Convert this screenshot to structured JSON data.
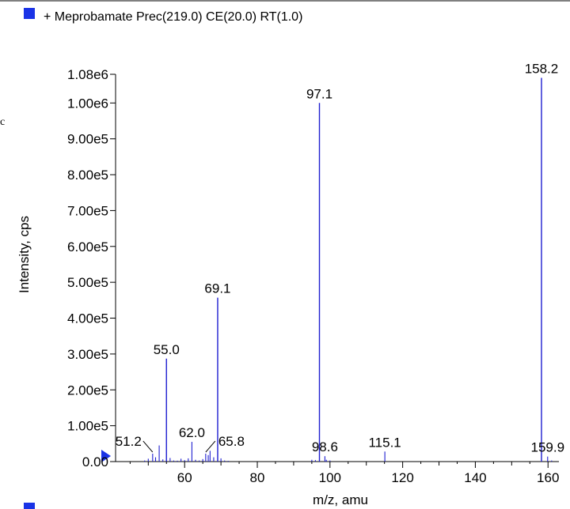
{
  "chart_data": {
    "type": "bar",
    "title": "+ Meprobamate Prec(219.0) CE(20.0) RT(1.0)",
    "xlabel": "m/z, amu",
    "ylabel": "Intensity, cps",
    "xlim": [
      41,
      163
    ],
    "ylim": [
      0,
      1080000
    ],
    "x_ticks": [
      60,
      80,
      100,
      120,
      140,
      160
    ],
    "y_ticks": [
      {
        "value": 0,
        "label": "0.00"
      },
      {
        "value": 100000,
        "label": "1.00e5"
      },
      {
        "value": 200000,
        "label": "2.00e5"
      },
      {
        "value": 300000,
        "label": "3.00e5"
      },
      {
        "value": 400000,
        "label": "4.00e5"
      },
      {
        "value": 500000,
        "label": "5.00e5"
      },
      {
        "value": 600000,
        "label": "6.00e5"
      },
      {
        "value": 700000,
        "label": "7.00e5"
      },
      {
        "value": 800000,
        "label": "8.00e5"
      },
      {
        "value": 900000,
        "label": "9.00e5"
      },
      {
        "value": 1000000,
        "label": "1.00e6"
      },
      {
        "value": 1080000,
        "label": "1.08e6"
      }
    ],
    "series_color": "#1f1fd0",
    "legend_color": "#1a33e6",
    "peaks": [
      {
        "mz": 49.0,
        "intensity": 3000
      },
      {
        "mz": 50.0,
        "intensity": 8000
      },
      {
        "mz": 51.2,
        "intensity": 22000,
        "label": "51.2"
      },
      {
        "mz": 52.0,
        "intensity": 12000
      },
      {
        "mz": 53.0,
        "intensity": 45000
      },
      {
        "mz": 54.0,
        "intensity": 6000
      },
      {
        "mz": 55.0,
        "intensity": 287000,
        "label": "55.0"
      },
      {
        "mz": 56.0,
        "intensity": 10000
      },
      {
        "mz": 57.0,
        "intensity": 3000
      },
      {
        "mz": 58.0,
        "intensity": 2500
      },
      {
        "mz": 59.0,
        "intensity": 8000
      },
      {
        "mz": 60.0,
        "intensity": 4000
      },
      {
        "mz": 61.0,
        "intensity": 9000
      },
      {
        "mz": 62.0,
        "intensity": 55000,
        "label": "62.0"
      },
      {
        "mz": 63.0,
        "intensity": 5000
      },
      {
        "mz": 64.0,
        "intensity": 3000
      },
      {
        "mz": 65.0,
        "intensity": 7000
      },
      {
        "mz": 65.8,
        "intensity": 22000,
        "label": "65.8"
      },
      {
        "mz": 66.5,
        "intensity": 18000
      },
      {
        "mz": 67.0,
        "intensity": 30000
      },
      {
        "mz": 68.0,
        "intensity": 12000
      },
      {
        "mz": 69.1,
        "intensity": 457000,
        "label": "69.1"
      },
      {
        "mz": 70.0,
        "intensity": 9000
      },
      {
        "mz": 71.0,
        "intensity": 3000
      },
      {
        "mz": 72.0,
        "intensity": 2000
      },
      {
        "mz": 95.0,
        "intensity": 5000
      },
      {
        "mz": 96.0,
        "intensity": 4000
      },
      {
        "mz": 97.1,
        "intensity": 1000000,
        "label": "97.1"
      },
      {
        "mz": 98.6,
        "intensity": 15000,
        "label": "98.6"
      },
      {
        "mz": 99.0,
        "intensity": 5000
      },
      {
        "mz": 100.0,
        "intensity": 3000
      },
      {
        "mz": 115.1,
        "intensity": 28000,
        "label": "115.1"
      },
      {
        "mz": 158.2,
        "intensity": 1070000,
        "label": "158.2"
      },
      {
        "mz": 159.9,
        "intensity": 14000,
        "label": "159.9"
      },
      {
        "mz": 161.0,
        "intensity": 3000
      }
    ],
    "grid": false,
    "legend_position": "top-left"
  },
  "partial_left_label": "c"
}
